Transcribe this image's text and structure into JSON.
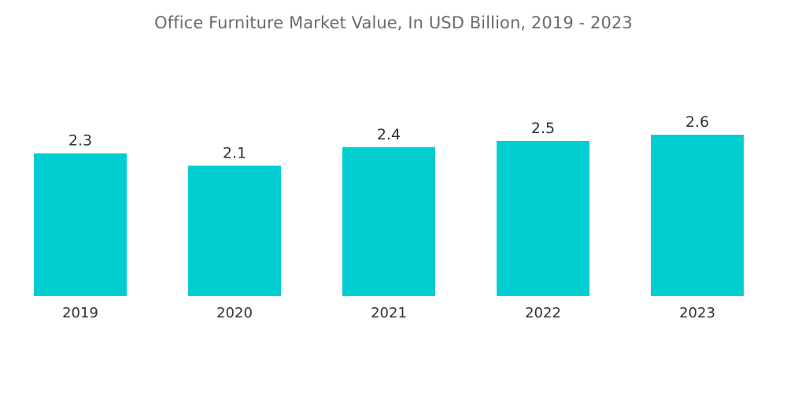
{
  "chart_data": {
    "type": "bar",
    "title": "Office Furniture Market Value, In USD Billion, 2019 - 2023",
    "categories": [
      "2019",
      "2020",
      "2021",
      "2022",
      "2023"
    ],
    "values": [
      2.3,
      2.1,
      2.4,
      2.5,
      2.6
    ],
    "value_labels": [
      "2.3",
      "2.1",
      "2.4",
      "2.5",
      "2.6"
    ],
    "xlabel": "",
    "ylabel": "",
    "ylim": [
      0,
      2.6
    ],
    "grid": false,
    "legend": "none",
    "bar_color": "#00CED1"
  }
}
